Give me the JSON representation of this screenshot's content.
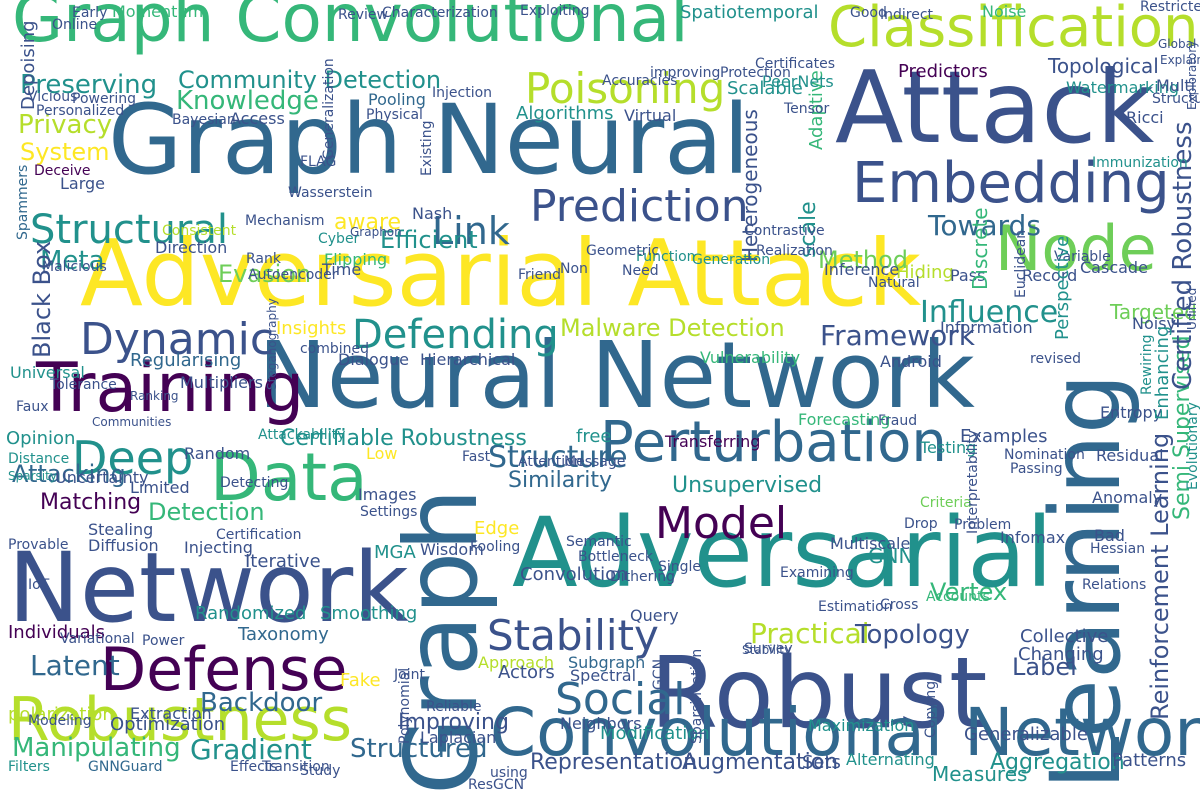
{
  "palette": {
    "dark_purple": "#440154",
    "indigo": "#3b528b",
    "blue": "#31688e",
    "teal": "#21918c",
    "green": "#35b779",
    "light_green": "#6ece58",
    "yellow_green": "#b5de2b",
    "yellow": "#fde725"
  },
  "words": [
    {
      "text": "Adversarial Attack"
    },
    {
      "text": "Neural Network"
    },
    {
      "text": "Network"
    },
    {
      "text": "Adversarial"
    },
    {
      "text": "Graph Neural"
    },
    {
      "text": "Graph Convolutional"
    },
    {
      "text": "Attack"
    },
    {
      "text": "Robust"
    },
    {
      "text": "Learning"
    },
    {
      "text": "Graph"
    },
    {
      "text": "Convolutional Network"
    },
    {
      "text": "Training"
    },
    {
      "text": "Embedding"
    },
    {
      "text": "Data"
    },
    {
      "text": "Perturbation"
    },
    {
      "text": "Node"
    },
    {
      "text": "Classification"
    },
    {
      "text": "Defense"
    },
    {
      "text": "Robustness"
    },
    {
      "text": "Prediction"
    },
    {
      "text": "Model"
    },
    {
      "text": "Dynamic"
    },
    {
      "text": "Defending"
    },
    {
      "text": "Poisoning"
    },
    {
      "text": "Structural"
    },
    {
      "text": "Stability"
    },
    {
      "text": "Deep"
    },
    {
      "text": "Social"
    },
    {
      "text": "Link"
    },
    {
      "text": "Framework"
    },
    {
      "text": "Structure"
    },
    {
      "text": "Community Detection"
    },
    {
      "text": "Knowledge"
    },
    {
      "text": "Malware Detection"
    },
    {
      "text": "Reinforcement Learning"
    },
    {
      "text": "Semi Supervised"
    },
    {
      "text": "Certified Robustness"
    },
    {
      "text": "Towards"
    },
    {
      "text": "Influence"
    },
    {
      "text": "Heterogeneous"
    },
    {
      "text": "Practical"
    },
    {
      "text": "Topology"
    },
    {
      "text": "Manipulating"
    },
    {
      "text": "Gradient"
    },
    {
      "text": "Backdoor"
    },
    {
      "text": "Structured"
    },
    {
      "text": "Convolution"
    },
    {
      "text": "Representation"
    },
    {
      "text": "Augmentation"
    },
    {
      "text": "Aggregation"
    },
    {
      "text": "Measures"
    },
    {
      "text": "Patterns"
    },
    {
      "text": "Efficient"
    },
    {
      "text": "Method"
    },
    {
      "text": "Evasion"
    },
    {
      "text": "Preserving"
    },
    {
      "text": "Privacy"
    },
    {
      "text": "System"
    },
    {
      "text": "Attacking"
    },
    {
      "text": "Matching"
    },
    {
      "text": "Detection"
    },
    {
      "text": "Latent"
    },
    {
      "text": "Certifiable Robustness"
    },
    {
      "text": "Similarity"
    },
    {
      "text": "Unsupervised"
    },
    {
      "text": "Meta"
    },
    {
      "text": "Black Box"
    },
    {
      "text": "Regularising"
    },
    {
      "text": "Hierarchical"
    },
    {
      "text": "Vulnerability"
    },
    {
      "text": "Android"
    },
    {
      "text": "Opinion"
    },
    {
      "text": "Insights"
    },
    {
      "text": "Taxonomy"
    },
    {
      "text": "Optimization"
    },
    {
      "text": "Randomized"
    },
    {
      "text": "Smoothing"
    },
    {
      "text": "Vertex"
    },
    {
      "text": "Label"
    },
    {
      "text": "Collective"
    },
    {
      "text": "Modification"
    },
    {
      "text": "Fake"
    },
    {
      "text": "Approach"
    },
    {
      "text": "Subgraph"
    },
    {
      "text": "Extraction"
    },
    {
      "text": "Improving"
    },
    {
      "text": "Targeted"
    },
    {
      "text": "Topological"
    },
    {
      "text": "Predictors"
    },
    {
      "text": "Watermarking"
    },
    {
      "text": "Scalable"
    },
    {
      "text": "Algorithms"
    },
    {
      "text": "Hiding"
    },
    {
      "text": "Cascade"
    },
    {
      "text": "Inference"
    },
    {
      "text": "Edge"
    },
    {
      "text": "Iterative"
    },
    {
      "text": "GNN"
    },
    {
      "text": "Limited"
    },
    {
      "text": "Dialogue"
    },
    {
      "text": "Information"
    },
    {
      "text": "Noisy"
    },
    {
      "text": "Entropy"
    },
    {
      "text": "Testing"
    },
    {
      "text": "Examples"
    },
    {
      "text": "Transferring"
    },
    {
      "text": "Distance"
    },
    {
      "text": "Uncertainty"
    },
    {
      "text": "Universal"
    },
    {
      "text": "Multipliers"
    },
    {
      "text": "Tolerance"
    },
    {
      "text": "Neighbors"
    },
    {
      "text": "Laplacian"
    },
    {
      "text": "Spectral"
    },
    {
      "text": "Survey"
    },
    {
      "text": "Individuals"
    },
    {
      "text": "Variational"
    },
    {
      "text": "polarization"
    },
    {
      "text": "Modeling"
    },
    {
      "text": "Power"
    },
    {
      "text": "Filters"
    },
    {
      "text": "GNNGuard"
    },
    {
      "text": "Effects"
    },
    {
      "text": "Transition"
    },
    {
      "text": "Study"
    },
    {
      "text": "Sets"
    },
    {
      "text": "Alternating"
    },
    {
      "text": "ResGCN"
    },
    {
      "text": "using"
    },
    {
      "text": "Generalizable"
    },
    {
      "text": "Maximization"
    },
    {
      "text": "Adaptive"
    },
    {
      "text": "Flipping"
    },
    {
      "text": "Rank"
    },
    {
      "text": "Cyber"
    },
    {
      "text": "Time"
    },
    {
      "text": "Direction"
    },
    {
      "text": "Autoencoder"
    },
    {
      "text": "Generation"
    },
    {
      "text": "Function"
    },
    {
      "text": "Friend"
    },
    {
      "text": "Need"
    },
    {
      "text": "free"
    },
    {
      "text": "Fast"
    },
    {
      "text": "Low"
    },
    {
      "text": "Images"
    },
    {
      "text": "Settings"
    },
    {
      "text": "Wisdom"
    },
    {
      "text": "Fooling"
    },
    {
      "text": "Query"
    },
    {
      "text": "Estimation"
    },
    {
      "text": "Cross"
    },
    {
      "text": "Accounts"
    },
    {
      "text": "Problem"
    },
    {
      "text": "Drop"
    },
    {
      "text": "Criteria"
    },
    {
      "text": "Anomaly"
    },
    {
      "text": "Residual"
    },
    {
      "text": "Bad"
    },
    {
      "text": "Hessian"
    },
    {
      "text": "Relations"
    },
    {
      "text": "Rewiring"
    },
    {
      "text": "revised"
    },
    {
      "text": "Record"
    },
    {
      "text": "Pass"
    },
    {
      "text": "Euclidean"
    },
    {
      "text": "Discrete"
    },
    {
      "text": "Variable"
    },
    {
      "text": "Ricci"
    },
    {
      "text": "Immunization"
    },
    {
      "text": "Certificates"
    },
    {
      "text": "PeerNets"
    },
    {
      "text": "Noise"
    },
    {
      "text": "Good"
    },
    {
      "text": "Indirect"
    },
    {
      "text": "Restricted"
    },
    {
      "text": "Spatiotemporal"
    },
    {
      "text": "Exploiting"
    },
    {
      "text": "Characterization"
    },
    {
      "text": "Review"
    },
    {
      "text": "Momentum"
    },
    {
      "text": "Early"
    },
    {
      "text": "Online"
    },
    {
      "text": "Depoising"
    },
    {
      "text": "Vicious"
    },
    {
      "text": "Personalized"
    },
    {
      "text": "Powering"
    },
    {
      "text": "Spammers"
    },
    {
      "text": "Deceive"
    },
    {
      "text": "Large"
    },
    {
      "text": "Malicious"
    },
    {
      "text": "Pooling"
    },
    {
      "text": "Physical"
    },
    {
      "text": "Injection"
    },
    {
      "text": "Access"
    },
    {
      "text": "Bayesian"
    },
    {
      "text": "Virtual"
    },
    {
      "text": "Accuracies"
    },
    {
      "text": "improving"
    },
    {
      "text": "Protection"
    },
    {
      "text": "Tensor"
    },
    {
      "text": "Multi"
    },
    {
      "text": "Structure"
    },
    {
      "text": "Nash"
    },
    {
      "text": "Existing"
    },
    {
      "text": "aware"
    },
    {
      "text": "scale"
    },
    {
      "text": "Random"
    },
    {
      "text": "Attention"
    },
    {
      "text": "Message"
    },
    {
      "text": "Forecasting"
    },
    {
      "text": "Fraud"
    },
    {
      "text": "Nomination"
    },
    {
      "text": "Passing"
    },
    {
      "text": "Interpretability"
    },
    {
      "text": "Infomax"
    },
    {
      "text": "Multiscale"
    },
    {
      "text": "Semantic"
    },
    {
      "text": "Bottleneck"
    },
    {
      "text": "MGA"
    },
    {
      "text": "Injecting"
    },
    {
      "text": "Stealing"
    },
    {
      "text": "Diffusion"
    },
    {
      "text": "Provable"
    },
    {
      "text": "IoT"
    },
    {
      "text": "Attackability"
    },
    {
      "text": "Certification"
    },
    {
      "text": "Detecting"
    },
    {
      "text": "Enhancing"
    },
    {
      "text": "Perspective"
    },
    {
      "text": "combined"
    },
    {
      "text": "Sparsity"
    },
    {
      "text": "Faux"
    },
    {
      "text": "Communities"
    },
    {
      "text": "Ranking"
    },
    {
      "text": "Steganography"
    },
    {
      "text": "Evolutionary"
    },
    {
      "text": "Unified"
    },
    {
      "text": "Exploratory"
    },
    {
      "text": "Explainable"
    },
    {
      "text": "Global"
    },
    {
      "text": "Actors"
    },
    {
      "text": "Polynomial"
    },
    {
      "text": "Joint"
    },
    {
      "text": "Reliable"
    },
    {
      "text": "Sparsification"
    },
    {
      "text": "GCN"
    },
    {
      "text": "Changing"
    },
    {
      "text": "Copying"
    },
    {
      "text": "Dithering"
    },
    {
      "text": "Examining"
    },
    {
      "text": "Single"
    },
    {
      "text": "Generalization"
    },
    {
      "text": "FLAG"
    },
    {
      "text": "Wasserstein"
    },
    {
      "text": "Mechanism"
    },
    {
      "text": "Consistent"
    },
    {
      "text": "Graphon"
    },
    {
      "text": "Non"
    },
    {
      "text": "Geometric"
    },
    {
      "text": "Contrastive"
    },
    {
      "text": "Realization"
    },
    {
      "text": "Natural"
    },
    {
      "text": "Stability"
    }
  ]
}
